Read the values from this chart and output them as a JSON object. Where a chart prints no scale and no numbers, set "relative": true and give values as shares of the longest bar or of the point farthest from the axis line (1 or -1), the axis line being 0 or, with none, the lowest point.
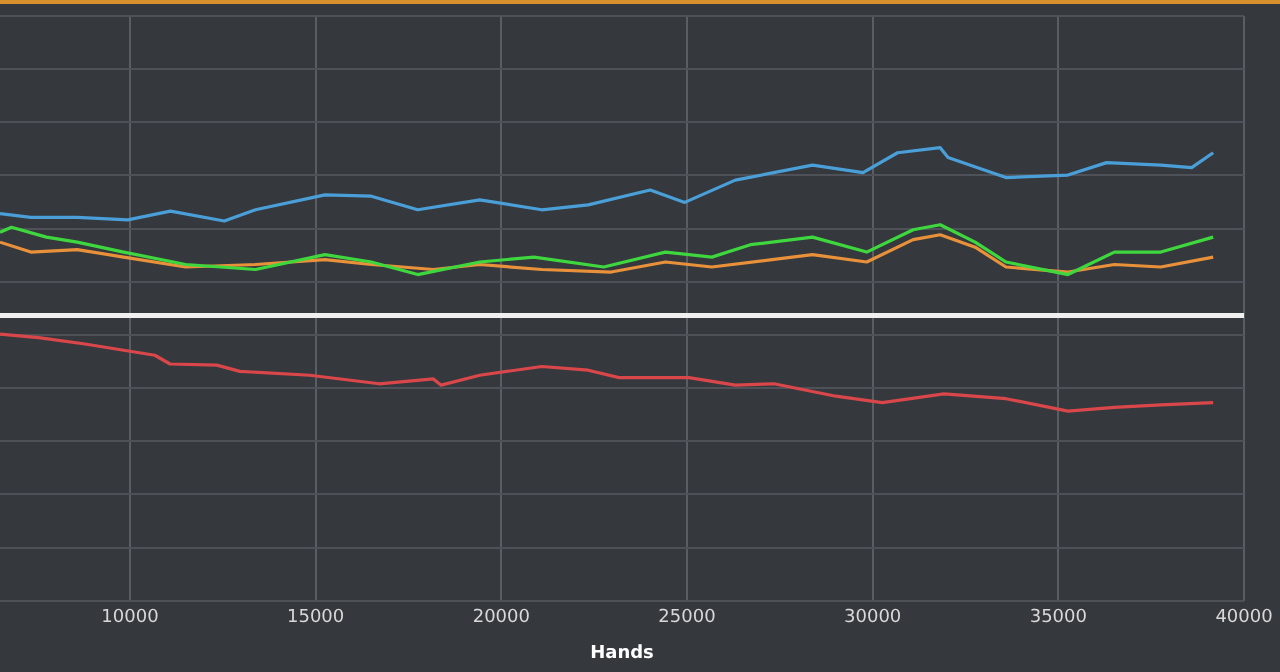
{
  "chart_data": {
    "type": "line",
    "xlabel": "Hands",
    "relative": true,
    "xlim": [
      6500,
      40000
    ],
    "xticks": [
      10000,
      15000,
      20000,
      25000,
      30000,
      35000,
      40000
    ],
    "tick_labels": "x",
    "grid": true,
    "legend": false,
    "marker": "none",
    "line_style": "solid",
    "series": [
      {
        "color": "#4a9fd8",
        "x": [
          6500,
          7330,
          8580,
          9940,
          11090,
          12540,
          13380,
          15250,
          16500,
          17750,
          19420,
          21090,
          22340,
          24010,
          24940,
          26300,
          28380,
          29740,
          30670,
          31820,
          32030,
          33590,
          35260,
          36300,
          37760,
          38590,
          39170
        ],
        "values": [
          0.607,
          0.585,
          0.585,
          0.57,
          0.622,
          0.563,
          0.63,
          0.719,
          0.711,
          0.63,
          0.689,
          0.63,
          0.659,
          0.748,
          0.674,
          0.807,
          0.896,
          0.852,
          0.97,
          1,
          0.941,
          0.822,
          0.837,
          0.911,
          0.896,
          0.881,
          0.97
        ]
      },
      {
        "color": "#3ed83e",
        "x": [
          6500,
          6810,
          7750,
          8580,
          9830,
          11500,
          13380,
          15250,
          16500,
          17750,
          19420,
          20880,
          22760,
          24420,
          25670,
          26710,
          28380,
          29840,
          31090,
          31820,
          32760,
          33590,
          35260,
          36510,
          37760,
          39170
        ],
        "values": [
          0.496,
          0.526,
          0.467,
          0.437,
          0.378,
          0.304,
          0.274,
          0.363,
          0.319,
          0.244,
          0.319,
          0.348,
          0.289,
          0.378,
          0.348,
          0.422,
          0.467,
          0.378,
          0.511,
          0.541,
          0.437,
          0.319,
          0.244,
          0.378,
          0.378,
          0.467
        ]
      },
      {
        "color": "#e8913a",
        "x": [
          6500,
          7330,
          8580,
          9830,
          11500,
          13380,
          15250,
          16500,
          18170,
          19420,
          21090,
          22960,
          24420,
          25670,
          28380,
          29840,
          31090,
          31820,
          32760,
          33590,
          35260,
          36510,
          37760,
          39170
        ],
        "values": [
          0.437,
          0.378,
          0.393,
          0.348,
          0.289,
          0.304,
          0.333,
          0.304,
          0.274,
          0.304,
          0.274,
          0.259,
          0.319,
          0.289,
          0.363,
          0.319,
          0.452,
          0.481,
          0.407,
          0.289,
          0.259,
          0.304,
          0.289,
          0.348
        ]
      },
      {
        "color": "#d9474a",
        "x": [
          6500,
          7540,
          8790,
          9830,
          10670,
          11080,
          12340,
          12960,
          14840,
          16710,
          18170,
          18380,
          19420,
          21090,
          22340,
          23170,
          25050,
          26300,
          27340,
          29010,
          30260,
          31920,
          33590,
          35260,
          36510,
          37760,
          39170
        ],
        "values": [
          -0.111,
          -0.132,
          -0.17,
          -0.207,
          -0.237,
          -0.289,
          -0.296,
          -0.333,
          -0.356,
          -0.407,
          -0.378,
          -0.415,
          -0.356,
          -0.304,
          -0.326,
          -0.37,
          -0.37,
          -0.415,
          -0.407,
          -0.481,
          -0.519,
          -0.467,
          -0.496,
          -0.57,
          -0.548,
          -0.533,
          -0.519
        ]
      }
    ],
    "ref_lines": [
      {
        "axis": "y",
        "value": 0,
        "color": "#f0f0f0"
      }
    ]
  }
}
